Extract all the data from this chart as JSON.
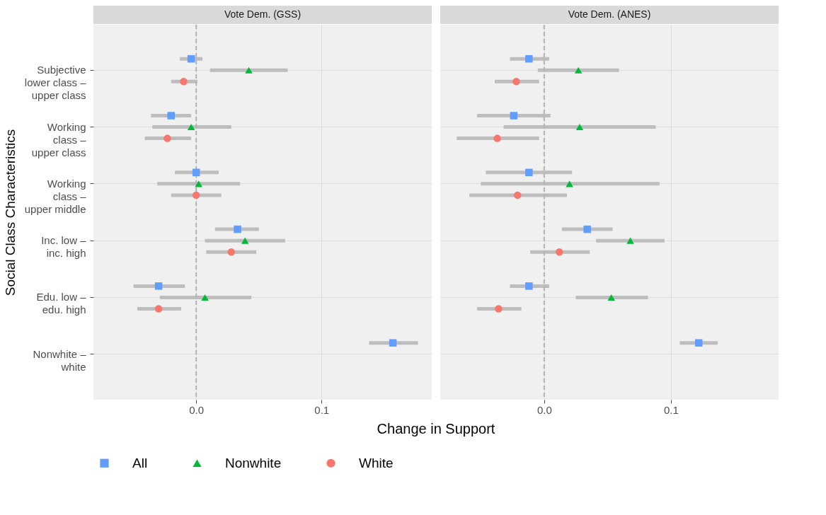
{
  "chart_data": [
    {
      "type": "scatter",
      "orientation": "horizontal",
      "title": "Vote Dem. (GSS)",
      "ylabel": "Social Class Characteristics",
      "xlabel": "Change in Support",
      "legend": "bottom",
      "grid": true,
      "categories": [
        "Subjective\nlower class –\nupper class",
        "Working\nclass –\nupper class",
        "Working\nclass –\nupper middle",
        "Inc. low –\ninc. high",
        "Edu. low –\nedu. high",
        "Nonwhite –\nwhite"
      ],
      "xlim": [
        -0.082,
        0.188
      ],
      "xticks": [
        {
          "value": 0,
          "label": "0.0"
        },
        0.1
      ],
      "ref_lines": [
        {
          "axis": "x",
          "value": 0,
          "color": "#b3b3b3",
          "line_style": "dashed"
        }
      ],
      "series": [
        {
          "name": "All",
          "color": "#619cff",
          "marker": "square",
          "values": [
            -0.004,
            -0.02,
            0.0,
            0.033,
            -0.03,
            0.157
          ],
          "errors": [
            [
              -0.013,
              0.005
            ],
            [
              -0.036,
              -0.004
            ],
            [
              -0.017,
              0.018
            ],
            [
              0.015,
              0.05
            ],
            [
              -0.05,
              -0.009
            ],
            [
              0.138,
              0.177
            ]
          ]
        },
        {
          "name": "Nonwhite",
          "color": "#00ba38",
          "marker": "triangle",
          "values": [
            0.042,
            -0.004,
            0.002,
            0.039,
            0.007,
            null
          ],
          "errors": [
            [
              0.011,
              0.073
            ],
            [
              -0.035,
              0.028
            ],
            [
              -0.031,
              0.035
            ],
            [
              0.007,
              0.071
            ],
            [
              -0.029,
              0.044
            ],
            null
          ]
        },
        {
          "name": "White",
          "color": "#f8766d",
          "marker": "circle",
          "values": [
            -0.01,
            -0.023,
            0.0,
            0.028,
            -0.03,
            null
          ],
          "errors": [
            [
              -0.02,
              0.001
            ],
            [
              -0.041,
              -0.004
            ],
            [
              -0.02,
              0.02
            ],
            [
              0.008,
              0.048
            ],
            [
              -0.047,
              -0.012
            ],
            null
          ]
        }
      ]
    },
    {
      "type": "scatter",
      "orientation": "horizontal",
      "title": "Vote Dem. (ANES)",
      "grid": true,
      "tick_labels": "x",
      "categories": [
        "Subjective\nlower class –\nupper class",
        "Working\nclass –\nupper class",
        "Working\nclass –\nupper middle",
        "Inc. low –\ninc. high",
        "Edu. low –\nedu. high",
        "Nonwhite –\nwhite"
      ],
      "xlim": [
        -0.082,
        0.185
      ],
      "xticks": [
        {
          "value": 0,
          "label": "0.0"
        },
        0.1
      ],
      "ref_lines": [
        {
          "axis": "x",
          "value": 0,
          "color": "#b3b3b3",
          "line_style": "dashed"
        }
      ],
      "series": [
        {
          "name": "All",
          "color": "#619cff",
          "marker": "square",
          "values": [
            -0.012,
            -0.024,
            -0.012,
            0.034,
            -0.012,
            0.122
          ],
          "errors": [
            [
              -0.027,
              0.004
            ],
            [
              -0.053,
              0.005
            ],
            [
              -0.046,
              0.022
            ],
            [
              0.014,
              0.054
            ],
            [
              -0.027,
              0.004
            ],
            [
              0.107,
              0.137
            ]
          ]
        },
        {
          "name": "Nonwhite",
          "color": "#00ba38",
          "marker": "triangle",
          "values": [
            0.027,
            0.028,
            0.02,
            0.068,
            0.053,
            null
          ],
          "errors": [
            [
              -0.005,
              0.059
            ],
            [
              -0.032,
              0.088
            ],
            [
              -0.05,
              0.091
            ],
            [
              0.041,
              0.095
            ],
            [
              0.025,
              0.082
            ],
            null
          ]
        },
        {
          "name": "White",
          "color": "#f8766d",
          "marker": "circle",
          "values": [
            -0.022,
            -0.037,
            -0.021,
            0.012,
            -0.036,
            null
          ],
          "errors": [
            [
              -0.039,
              -0.004
            ],
            [
              -0.069,
              -0.004
            ],
            [
              -0.059,
              0.018
            ],
            [
              -0.011,
              0.036
            ],
            [
              -0.053,
              -0.018
            ],
            null
          ]
        }
      ]
    }
  ]
}
